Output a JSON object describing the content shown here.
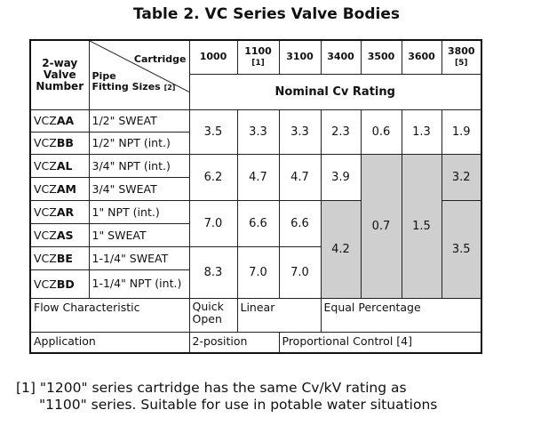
{
  "title": "Table 2. VC Series Valve Bodies",
  "header": {
    "valve_number": [
      "2-way",
      "Valve",
      "Number"
    ],
    "cartridge": "Cartridge",
    "pipe": "Pipe",
    "fitting_sizes": "Fitting Sizes",
    "fitting_note": "[2]",
    "nominal": "Nominal Cv Rating",
    "cartridges": [
      {
        "name": "1000",
        "note": ""
      },
      {
        "name": "1100",
        "note": "[1]"
      },
      {
        "name": "3100",
        "note": ""
      },
      {
        "name": "3400",
        "note": ""
      },
      {
        "name": "3500",
        "note": ""
      },
      {
        "name": "3600",
        "note": ""
      },
      {
        "name": "3800",
        "note": "[5]"
      }
    ]
  },
  "rows": [
    {
      "prefix": "VCZ",
      "code": "AA",
      "pipe": "1/2\" SWEAT"
    },
    {
      "prefix": "VCZ",
      "code": "BB",
      "pipe": "1/2\" NPT (int.)"
    },
    {
      "prefix": "VCZ",
      "code": "AL",
      "pipe": "3/4\" NPT (int.)"
    },
    {
      "prefix": "VCZ",
      "code": "AM",
      "pipe": "3/4\" SWEAT"
    },
    {
      "prefix": "VCZ",
      "code": "AR",
      "pipe": "1\" NPT (int.)"
    },
    {
      "prefix": "VCZ",
      "code": "AS",
      "pipe": "1\" SWEAT"
    },
    {
      "prefix": "VCZ",
      "code": "BE",
      "pipe": "1-1/4\" SWEAT"
    },
    {
      "prefix": "VCZ",
      "code": "BD",
      "pipe": "1-1/4\" NPT (int.)"
    }
  ],
  "values": {
    "g1": {
      "c1000": "3.5",
      "c1100": "3.3",
      "c3100": "3.3",
      "c3400": "2.3",
      "c3500": "0.6",
      "c3600": "1.3",
      "c3800": "1.9"
    },
    "g2": {
      "c1000": "6.2",
      "c1100": "4.7",
      "c3100": "4.7",
      "c3400": "3.9",
      "c3800": "3.2"
    },
    "g3": {
      "c1000": "7.0",
      "c1100": "6.6",
      "c3100": "6.6"
    },
    "g4": {
      "c1000": "8.3",
      "c1100": "7.0",
      "c3100": "7.0"
    },
    "c3400_low": "4.2",
    "c3500_low": "0.7",
    "c3600_low": "1.5",
    "c3800_low": "3.5"
  },
  "flow": {
    "label": "Flow Characteristic",
    "quick": "Quick Open",
    "linear": "Linear",
    "equal": "Equal Percentage"
  },
  "application": {
    "label": "Application",
    "two_position": "2-position",
    "proportional": "Proportional Control [4]"
  },
  "footnote": {
    "line1": "[1] \"1200\" series cartridge has the same Cv/kV rating as",
    "line2": "\"1100\" series. Suitable for use in potable water situations"
  },
  "colors": {
    "shaded_cell": "#cfcfcf"
  }
}
